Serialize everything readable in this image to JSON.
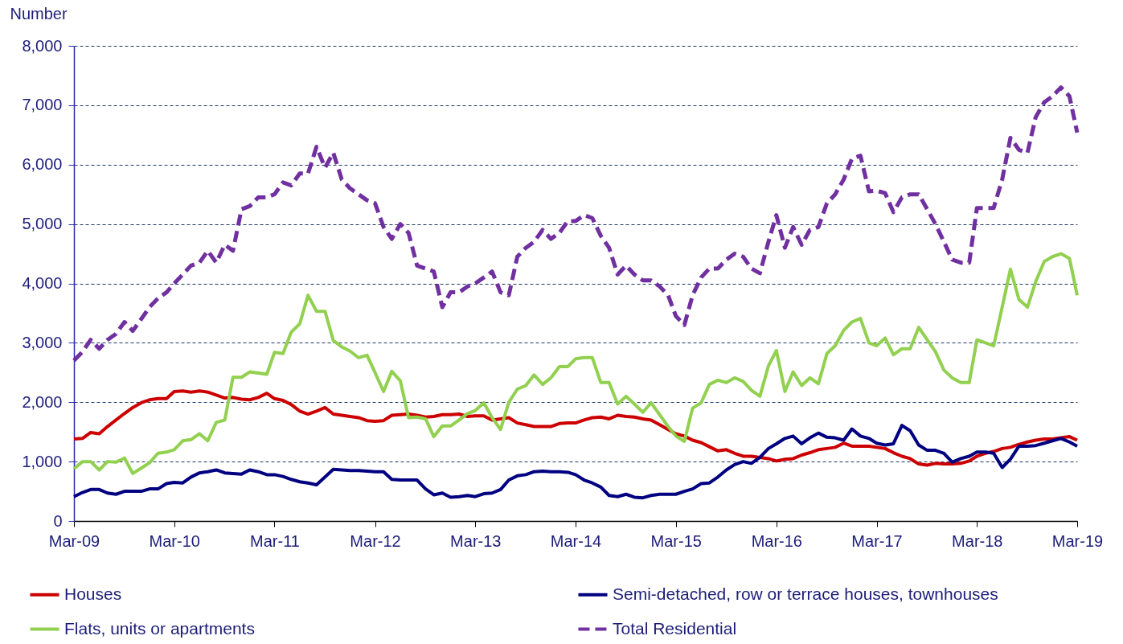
{
  "chart_data": {
    "type": "line",
    "ylabel": "Number",
    "x": [
      "2009-03",
      "2009-04",
      "2009-05",
      "2009-06",
      "2009-07",
      "2009-08",
      "2009-09",
      "2009-10",
      "2009-11",
      "2009-12",
      "2010-01",
      "2010-02",
      "2010-03",
      "2010-04",
      "2010-05",
      "2010-06",
      "2010-07",
      "2010-08",
      "2010-09",
      "2010-10",
      "2010-11",
      "2010-12",
      "2011-01",
      "2011-02",
      "2011-03",
      "2011-04",
      "2011-05",
      "2011-06",
      "2011-07",
      "2011-08",
      "2011-09",
      "2011-10",
      "2011-11",
      "2011-12",
      "2012-01",
      "2012-02",
      "2012-03",
      "2012-04",
      "2012-05",
      "2012-06",
      "2012-07",
      "2012-08",
      "2012-09",
      "2012-10",
      "2012-11",
      "2012-12",
      "2013-01",
      "2013-02",
      "2013-03",
      "2013-04",
      "2013-05",
      "2013-06",
      "2013-07",
      "2013-08",
      "2013-09",
      "2013-10",
      "2013-11",
      "2013-12",
      "2014-01",
      "2014-02",
      "2014-03",
      "2014-04",
      "2014-05",
      "2014-06",
      "2014-07",
      "2014-08",
      "2014-09",
      "2014-10",
      "2014-11",
      "2014-12",
      "2015-01",
      "2015-02",
      "2015-03",
      "2015-04",
      "2015-05",
      "2015-06",
      "2015-07",
      "2015-08",
      "2015-09",
      "2015-10",
      "2015-11",
      "2015-12",
      "2016-01",
      "2016-02",
      "2016-03",
      "2016-04",
      "2016-05",
      "2016-06",
      "2016-07",
      "2016-08",
      "2016-09",
      "2016-10",
      "2016-11",
      "2016-12",
      "2017-01",
      "2017-02",
      "2017-03",
      "2017-04",
      "2017-05",
      "2017-06",
      "2017-07",
      "2017-08",
      "2017-09",
      "2017-10",
      "2017-11",
      "2017-12",
      "2018-01",
      "2018-02",
      "2018-03",
      "2018-04",
      "2018-05",
      "2018-06",
      "2018-07",
      "2018-08",
      "2018-09",
      "2018-10",
      "2018-11",
      "2018-12",
      "2019-01",
      "2019-02",
      "2019-03"
    ],
    "series": [
      {
        "name": "Houses",
        "color": "#cc0000",
        "line_style": "solid",
        "values": [
          1380,
          1390,
          1490,
          1470,
          1590,
          1700,
          1810,
          1910,
          1990,
          2040,
          2060,
          2060,
          2180,
          2190,
          2170,
          2190,
          2170,
          2120,
          2070,
          2080,
          2050,
          2040,
          2080,
          2150,
          2060,
          2030,
          1960,
          1850,
          1800,
          1850,
          1910,
          1800,
          1780,
          1760,
          1740,
          1690,
          1680,
          1690,
          1780,
          1790,
          1800,
          1780,
          1750,
          1760,
          1790,
          1790,
          1800,
          1760,
          1770,
          1770,
          1700,
          1720,
          1740,
          1650,
          1620,
          1590,
          1590,
          1590,
          1640,
          1650,
          1650,
          1700,
          1740,
          1750,
          1720,
          1780,
          1760,
          1750,
          1720,
          1700,
          1620,
          1540,
          1470,
          1430,
          1360,
          1320,
          1250,
          1180,
          1200,
          1140,
          1090,
          1090,
          1070,
          1050,
          1010,
          1040,
          1050,
          1110,
          1150,
          1200,
          1220,
          1240,
          1310,
          1260,
          1260,
          1260,
          1240,
          1220,
          1150,
          1090,
          1050,
          960,
          940,
          970,
          960,
          960,
          970,
          1010,
          1090,
          1140,
          1170,
          1220,
          1240,
          1290,
          1330,
          1360,
          1380,
          1380,
          1400,
          1420,
          1360
        ]
      },
      {
        "name": "Semi-detached, row or terrace houses, townhouses",
        "color": "#000080",
        "line_style": "solid",
        "values": [
          410,
          480,
          530,
          530,
          470,
          450,
          500,
          500,
          500,
          540,
          540,
          630,
          650,
          640,
          740,
          810,
          830,
          860,
          810,
          800,
          790,
          860,
          830,
          780,
          780,
          750,
          700,
          660,
          640,
          610,
          740,
          870,
          860,
          850,
          850,
          840,
          830,
          830,
          700,
          690,
          690,
          690,
          540,
          440,
          470,
          400,
          410,
          430,
          410,
          460,
          470,
          530,
          690,
          760,
          780,
          830,
          840,
          830,
          830,
          820,
          780,
          690,
          640,
          570,
          430,
          410,
          450,
          400,
          390,
          430,
          450,
          450,
          450,
          500,
          540,
          630,
          640,
          740,
          860,
          950,
          1000,
          970,
          1070,
          1220,
          1300,
          1390,
          1430,
          1300,
          1400,
          1480,
          1410,
          1400,
          1360,
          1550,
          1430,
          1390,
          1310,
          1280,
          1300,
          1610,
          1520,
          1280,
          1190,
          1190,
          1140,
          990,
          1050,
          1090,
          1160,
          1160,
          1140,
          900,
          1040,
          1260,
          1260,
          1270,
          1310,
          1350,
          1390,
          1330,
          1260
        ]
      },
      {
        "name": "Flats, units or apartments",
        "color": "#92d050",
        "line_style": "solid",
        "values": [
          880,
          1000,
          1000,
          860,
          1000,
          990,
          1060,
          800,
          890,
          980,
          1140,
          1160,
          1200,
          1350,
          1370,
          1470,
          1350,
          1660,
          1700,
          2420,
          2420,
          2510,
          2490,
          2470,
          2840,
          2820,
          3180,
          3320,
          3800,
          3530,
          3530,
          3040,
          2930,
          2860,
          2750,
          2790,
          2500,
          2180,
          2520,
          2360,
          1740,
          1750,
          1720,
          1420,
          1600,
          1600,
          1700,
          1810,
          1860,
          1990,
          1740,
          1540,
          2000,
          2220,
          2280,
          2460,
          2300,
          2410,
          2600,
          2600,
          2730,
          2750,
          2750,
          2330,
          2330,
          1970,
          2100,
          1970,
          1830,
          1990,
          1790,
          1590,
          1430,
          1340,
          1900,
          1990,
          2300,
          2370,
          2330,
          2410,
          2350,
          2200,
          2100,
          2610,
          2870,
          2180,
          2510,
          2280,
          2410,
          2310,
          2820,
          2950,
          3210,
          3350,
          3410,
          3000,
          2950,
          3080,
          2800,
          2900,
          2900,
          3260,
          3050,
          2850,
          2540,
          2410,
          2330,
          2330,
          3050,
          3000,
          2950,
          3600,
          4240,
          3730,
          3600,
          4030,
          4370,
          4450,
          4500,
          4420,
          3800
        ]
      },
      {
        "name": "Total Residential",
        "color": "#7030a0",
        "line_style": "dashed",
        "values": [
          2700,
          2850,
          3050,
          2900,
          3050,
          3150,
          3350,
          3200,
          3400,
          3600,
          3750,
          3850,
          4000,
          4150,
          4300,
          4350,
          4550,
          4350,
          4650,
          4550,
          5250,
          5300,
          5450,
          5450,
          5500,
          5700,
          5650,
          5850,
          5850,
          6300,
          5950,
          6200,
          5750,
          5600,
          5500,
          5400,
          5350,
          4950,
          4750,
          5000,
          4850,
          4300,
          4250,
          4200,
          3600,
          3850,
          3850,
          3950,
          4000,
          4100,
          4200,
          3850,
          3800,
          4450,
          4600,
          4700,
          4900,
          4750,
          4850,
          5050,
          5050,
          5150,
          5100,
          4800,
          4600,
          4150,
          4300,
          4150,
          4050,
          4050,
          3950,
          3800,
          3450,
          3300,
          3800,
          4100,
          4250,
          4250,
          4400,
          4500,
          4450,
          4250,
          4170,
          4700,
          5150,
          4600,
          4950,
          4650,
          4900,
          4950,
          5350,
          5500,
          5750,
          6100,
          6150,
          5550,
          5560,
          5520,
          5200,
          5450,
          5500,
          5500,
          5250,
          5000,
          4700,
          4400,
          4350,
          4350,
          5270,
          5270,
          5270,
          5750,
          6450,
          6250,
          6200,
          6800,
          7050,
          7150,
          7300,
          7150,
          6540
        ]
      }
    ],
    "xlim": [
      "2009-03",
      "2019-03"
    ],
    "xticks": [
      {
        "value": "2009-03",
        "label": "Mar-09"
      },
      {
        "value": "2010-03",
        "label": "Mar-10"
      },
      {
        "value": "2011-03",
        "label": "Mar-11"
      },
      {
        "value": "2012-03",
        "label": "Mar-12"
      },
      {
        "value": "2013-03",
        "label": "Mar-13"
      },
      {
        "value": "2014-03",
        "label": "Mar-14"
      },
      {
        "value": "2015-03",
        "label": "Mar-15"
      },
      {
        "value": "2016-03",
        "label": "Mar-16"
      },
      {
        "value": "2017-03",
        "label": "Mar-17"
      },
      {
        "value": "2018-03",
        "label": "Mar-18"
      },
      {
        "value": "2019-03",
        "label": "Mar-19"
      }
    ],
    "ylim": [
      0,
      8000
    ],
    "yticks": [
      {
        "value": 0,
        "label": "0"
      },
      {
        "value": 1000,
        "label": "1,000"
      },
      {
        "value": 2000,
        "label": "2,000"
      },
      {
        "value": 3000,
        "label": "3,000"
      },
      {
        "value": 4000,
        "label": "4,000"
      },
      {
        "value": 5000,
        "label": "5,000"
      },
      {
        "value": 6000,
        "label": "6,000"
      },
      {
        "value": 7000,
        "label": "7,000"
      },
      {
        "value": 8000,
        "label": "8,000"
      }
    ],
    "grid": "y",
    "legend": "bottom"
  }
}
